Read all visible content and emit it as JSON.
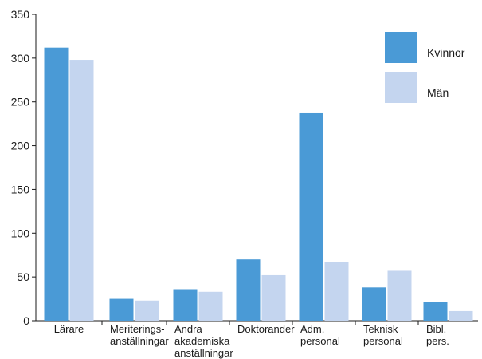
{
  "chart_data": {
    "type": "bar",
    "title": "",
    "xlabel": "",
    "ylabel": "",
    "ylim": [
      0,
      350
    ],
    "yticks": [
      0,
      50,
      100,
      150,
      200,
      250,
      300,
      350
    ],
    "grid": false,
    "legend_position": "top-right",
    "categories": [
      [
        "Lärare"
      ],
      [
        "Meriterings-",
        "anställningar"
      ],
      [
        "Andra",
        "akademiska",
        "anställningar"
      ],
      [
        "Doktorander"
      ],
      [
        "Adm.",
        "personal"
      ],
      [
        "Teknisk",
        "personal"
      ],
      [
        "Bibl.",
        "pers."
      ]
    ],
    "series": [
      {
        "name": "Kvinnor",
        "color": "#4a9ad6",
        "values": [
          312,
          25,
          36,
          70,
          237,
          38,
          21
        ]
      },
      {
        "name": "Män",
        "color": "#c4d5ef",
        "values": [
          298,
          23,
          33,
          52,
          67,
          57,
          11
        ]
      }
    ]
  }
}
